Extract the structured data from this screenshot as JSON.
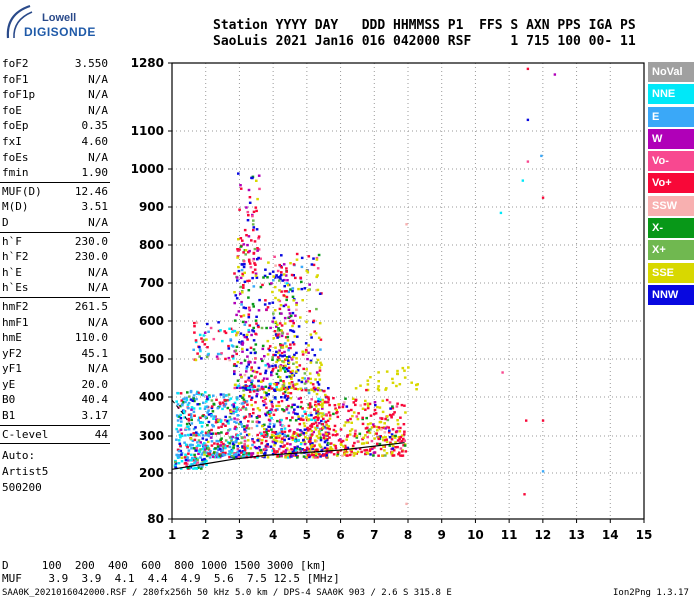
{
  "logo": {
    "line1": "Lowell",
    "line2": "DIGISONDE"
  },
  "header": {
    "labels": "Station YYYY DAY   DDD HHMMSS P1  FFS S AXN PPS IGA PS",
    "values": "SaoLuis 2021 Jan16 016 042000 RSF     1 715 100 00- 11"
  },
  "params": {
    "group1": [
      {
        "k": "foF2",
        "v": "3.550"
      },
      {
        "k": "foF1",
        "v": "N/A"
      },
      {
        "k": "foF1p",
        "v": "N/A"
      },
      {
        "k": "foE",
        "v": "N/A"
      },
      {
        "k": "foEp",
        "v": "0.35"
      },
      {
        "k": "fxI",
        "v": "4.60"
      },
      {
        "k": "foEs",
        "v": "N/A"
      },
      {
        "k": "fmin",
        "v": "1.90"
      }
    ],
    "group2": [
      {
        "k": "MUF(D)",
        "v": "12.46"
      },
      {
        "k": "M(D)",
        "v": "3.51"
      },
      {
        "k": "D",
        "v": "N/A"
      }
    ],
    "group3": [
      {
        "k": "h`F",
        "v": "230.0"
      },
      {
        "k": "h`F2",
        "v": "230.0"
      },
      {
        "k": "h`E",
        "v": "N/A"
      },
      {
        "k": "h`Es",
        "v": "N/A"
      }
    ],
    "group4": [
      {
        "k": "hmF2",
        "v": "261.5"
      },
      {
        "k": "hmF1",
        "v": "N/A"
      },
      {
        "k": "hmE",
        "v": "110.0"
      },
      {
        "k": "yF2",
        "v": "45.1"
      },
      {
        "k": "yF1",
        "v": "N/A"
      },
      {
        "k": "yE",
        "v": "20.0"
      },
      {
        "k": "B0",
        "v": "40.4"
      },
      {
        "k": "B1",
        "v": "3.17"
      }
    ],
    "group5": [
      {
        "k": "C-level",
        "v": "44"
      }
    ]
  },
  "auto": {
    "l1": "Auto:",
    "l2": "Artist5",
    "l3": "500200"
  },
  "legend": [
    {
      "label": "NoVal",
      "color": "#a0a0a0"
    },
    {
      "label": "NNE",
      "color": "#00e8f8"
    },
    {
      "label": "E",
      "color": "#3aa8f8"
    },
    {
      "label": "W",
      "color": "#b000b8"
    },
    {
      "label": "Vo-",
      "color": "#f84890"
    },
    {
      "label": "Vo+",
      "color": "#f80838"
    },
    {
      "label": "SSW",
      "color": "#f8b0b0"
    },
    {
      "label": "X-",
      "color": "#089818"
    },
    {
      "label": "X+",
      "color": "#70b850"
    },
    {
      "label": "SSE",
      "color": "#d8d800"
    },
    {
      "label": "NNW",
      "color": "#0808e0"
    }
  ],
  "footer": {
    "d_row": "D     100  200  400  600  800 1000 1500 3000 [km]",
    "muf_row": "MUF    3.9  3.9  4.1  4.4  4.9  5.6  7.5 12.5 [MHz]",
    "file_info": "SAA0K_2021016042000.RSF / 280fx256h 50 kHz 5.0 km / DPS-4 SAA0K 903 / 2.6 S 315.8 E",
    "version": "Ion2Png 1.3.17"
  },
  "chart_data": {
    "type": "scatter",
    "title": "",
    "xlabel": "",
    "ylabel": "",
    "xlim": [
      1,
      15
    ],
    "ylim": [
      80,
      1280
    ],
    "x_ticks": [
      "1",
      "2",
      "3",
      "4",
      "5",
      "6",
      "7",
      "8",
      "9",
      "10",
      "11",
      "12",
      "13",
      "14",
      "15"
    ],
    "y_ticks": [
      "80",
      "200",
      "300",
      "400",
      "500",
      "600",
      "700",
      "800",
      "900",
      "1000",
      "1100",
      "1280"
    ],
    "y_tick_values": [
      80,
      200,
      300,
      400,
      500,
      600,
      700,
      800,
      900,
      1000,
      1100,
      1280
    ],
    "grid": true,
    "clusters": [
      {
        "x0": 1.05,
        "x1": 2.0,
        "y0": 215,
        "y1": 420,
        "weights": [
          0,
          30,
          25,
          4,
          2,
          12,
          1,
          6,
          4,
          2,
          8
        ]
      },
      {
        "x0": 1.6,
        "x1": 2.8,
        "y0": 500,
        "y1": 600,
        "weights": [
          0,
          8,
          4,
          2,
          3,
          14,
          1,
          1,
          1,
          3,
          3
        ]
      },
      {
        "x0": 2.0,
        "x1": 3.2,
        "y0": 245,
        "y1": 410,
        "weights": [
          0,
          18,
          20,
          6,
          4,
          16,
          1,
          12,
          6,
          6,
          12
        ]
      },
      {
        "x0": 2.8,
        "x1": 4.6,
        "y0": 420,
        "y1": 760,
        "weights": [
          0,
          2,
          2,
          14,
          3,
          14,
          1,
          8,
          2,
          10,
          20
        ]
      },
      {
        "x0": 2.9,
        "x1": 3.6,
        "y0": 760,
        "y1": 1000,
        "weights": [
          0,
          0,
          0,
          3,
          4,
          14,
          1,
          1,
          2,
          2,
          4
        ]
      },
      {
        "x0": 3.2,
        "x1": 5.6,
        "y0": 245,
        "y1": 430,
        "weights": [
          0,
          4,
          4,
          8,
          6,
          22,
          1,
          6,
          3,
          14,
          16
        ]
      },
      {
        "x0": 4.0,
        "x1": 5.4,
        "y0": 420,
        "y1": 780,
        "weights": [
          0,
          0,
          1,
          6,
          2,
          8,
          1,
          2,
          4,
          24,
          10
        ]
      },
      {
        "x0": 5.0,
        "x1": 7.9,
        "y0": 250,
        "y1": 400,
        "weights": [
          0,
          0,
          0,
          2,
          3,
          30,
          1,
          2,
          1,
          20,
          3
        ]
      },
      {
        "x0": 6.3,
        "x1": 8.3,
        "y0": 420,
        "y1": 510,
        "weights": [
          0,
          0,
          0,
          0,
          0,
          1,
          0,
          0,
          0,
          20,
          0
        ]
      }
    ],
    "cluster_density": [
      260,
      60,
      320,
      380,
      70,
      520,
      200,
      380,
      30
    ],
    "isolated_points": [
      {
        "x": 11.55,
        "y": 1265,
        "c": "Vo+"
      },
      {
        "x": 11.55,
        "y": 1130,
        "c": "NNW"
      },
      {
        "x": 11.55,
        "y": 1020,
        "c": "Vo-"
      },
      {
        "x": 11.4,
        "y": 970,
        "c": "NNE"
      },
      {
        "x": 11.95,
        "y": 1035,
        "c": "E"
      },
      {
        "x": 12.0,
        "y": 925,
        "c": "Vo+"
      },
      {
        "x": 12.35,
        "y": 1250,
        "c": "W"
      },
      {
        "x": 10.75,
        "y": 885,
        "c": "NNE"
      },
      {
        "x": 11.5,
        "y": 340,
        "c": "Vo+"
      },
      {
        "x": 12.0,
        "y": 340,
        "c": "Vo+"
      },
      {
        "x": 12.0,
        "y": 205,
        "c": "E"
      },
      {
        "x": 11.45,
        "y": 145,
        "c": "Vo+"
      },
      {
        "x": 7.95,
        "y": 120,
        "c": "SSW"
      },
      {
        "x": 7.95,
        "y": 855,
        "c": "SSW"
      },
      {
        "x": 10.8,
        "y": 465,
        "c": "Vo-"
      }
    ],
    "trace": [
      [
        1.0,
        210
      ],
      [
        2.0,
        225
      ],
      [
        2.8,
        237
      ],
      [
        3.8,
        248
      ],
      [
        6.0,
        262
      ],
      [
        7.9,
        282
      ]
    ],
    "dashed_trace": [
      [
        1.0,
        392
      ],
      [
        1.35,
        355
      ],
      [
        1.6,
        320
      ]
    ]
  }
}
